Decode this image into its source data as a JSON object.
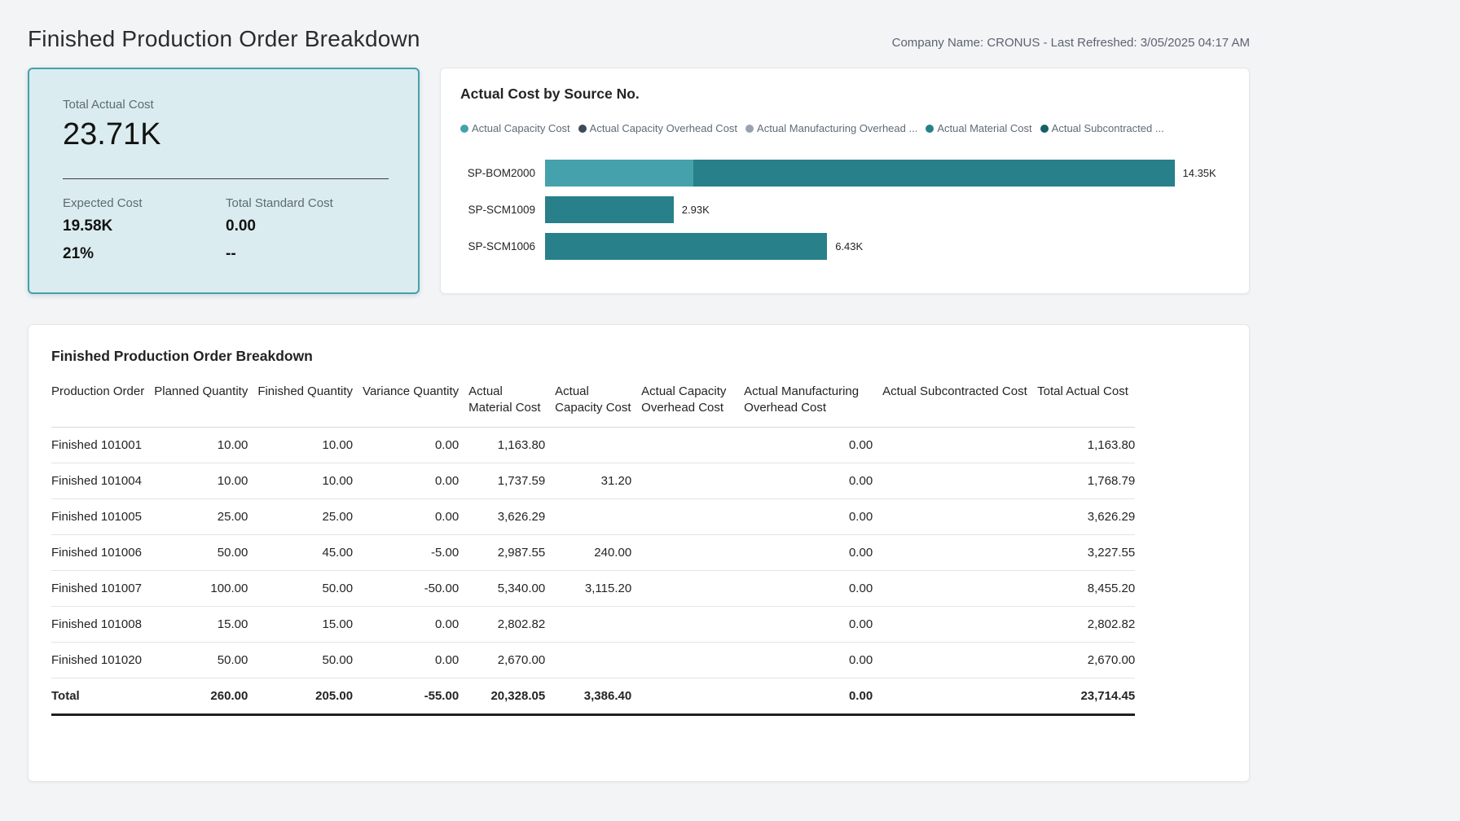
{
  "page": {
    "title": "Finished Production Order Breakdown",
    "company_info": "Company Name: CRONUS - Last Refreshed: 3/05/2025 04:17 AM"
  },
  "kpi_card": {
    "title": "Total Actual Cost",
    "value": "23.71K",
    "metrics": [
      {
        "label": "Expected Cost",
        "value": "19.58K",
        "sub_value": "21%"
      },
      {
        "label": "Total Standard Cost",
        "value": "0.00",
        "sub_value": "--"
      }
    ],
    "background_color": "#daecef",
    "border_color": "#46a0ab"
  },
  "chart_data": {
    "type": "bar",
    "orientation": "horizontal",
    "stacked": true,
    "title": "Actual Cost by Source No.",
    "categories": [
      "SP-BOM2000",
      "SP-SCM1009",
      "SP-SCM1006"
    ],
    "series": [
      {
        "name": "Actual Capacity Cost",
        "color": "#45A1AB",
        "values": [
          3386.4,
          0,
          0
        ]
      },
      {
        "name": "Actual Material Cost",
        "color": "#27808A",
        "values": [
          10960.05,
          2930,
          6430
        ]
      }
    ],
    "totals": [
      14346.45,
      2930,
      6430
    ],
    "total_labels": [
      "14.35K",
      "2.93K",
      "6.43K"
    ],
    "legend": [
      {
        "label": "Actual Capacity Cost",
        "color": "#45A1AB"
      },
      {
        "label": "Actual Capacity Overhead Cost",
        "color": "#3C4A5B"
      },
      {
        "label": "Actual Manufacturing Overhead ...",
        "color": "#9AA2AF"
      },
      {
        "label": "Actual Material Cost",
        "color": "#27808A"
      },
      {
        "label": "Actual Subcontracted ...",
        "color": "#175F69"
      }
    ],
    "legend_position": "top",
    "axis_max": 15600,
    "grid": false,
    "value_labels": true
  },
  "table": {
    "title": "Finished Production Order Breakdown",
    "columns": [
      "Production Order",
      "Planned Quantity",
      "Finished Quantity",
      "Variance Quantity",
      "Actual Material Cost",
      "Actual Capacity Cost",
      "Actual Capacity Overhead Cost",
      "Actual Manufacturing Overhead Cost",
      "Actual Subcontracted Cost",
      "Total Actual Cost"
    ],
    "rows": [
      [
        "Finished 101001",
        "10.00",
        "10.00",
        "0.00",
        "1,163.80",
        "",
        "",
        "0.00",
        "",
        "1,163.80"
      ],
      [
        "Finished 101004",
        "10.00",
        "10.00",
        "0.00",
        "1,737.59",
        "31.20",
        "",
        "0.00",
        "",
        "1,768.79"
      ],
      [
        "Finished 101005",
        "25.00",
        "25.00",
        "0.00",
        "3,626.29",
        "",
        "",
        "0.00",
        "",
        "3,626.29"
      ],
      [
        "Finished 101006",
        "50.00",
        "45.00",
        "-5.00",
        "2,987.55",
        "240.00",
        "",
        "0.00",
        "",
        "3,227.55"
      ],
      [
        "Finished 101007",
        "100.00",
        "50.00",
        "-50.00",
        "5,340.00",
        "3,115.20",
        "",
        "0.00",
        "",
        "8,455.20"
      ],
      [
        "Finished 101008",
        "15.00",
        "15.00",
        "0.00",
        "2,802.82",
        "",
        "",
        "0.00",
        "",
        "2,802.82"
      ],
      [
        "Finished 101020",
        "50.00",
        "50.00",
        "0.00",
        "2,670.00",
        "",
        "",
        "0.00",
        "",
        "2,670.00"
      ]
    ],
    "total_row": [
      "Total",
      "260.00",
      "205.00",
      "-55.00",
      "20,328.05",
      "3,386.40",
      "",
      "0.00",
      "",
      "23,714.45"
    ]
  }
}
